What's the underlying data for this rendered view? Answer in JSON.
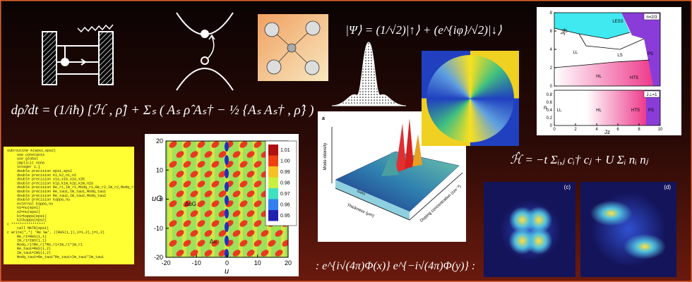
{
  "equations": {
    "density_matrix": "dρ̂/dt = (1/iħ) [ℋ , ρ̂] + Σₛ ( Aₛ ρ̂ Aₛ† − ½ {Aₛ Aₛ† , ρ̂} )",
    "spin_state": "|Ψ⟩ = (1/√2)|↑⟩ + (e^{iφ}/√2)|↓⟩",
    "hamiltonian": "ℋ̂ = −t Σᵢ,ⱼ cᵢ† cⱼ + U Σᵢ nᵢ nⱼ",
    "vertex": ": e^{i√(4π)Φ(x)} e^{−i√(4π)Φ(y)} :"
  },
  "code": [
    "subroutine A(eps1,eps2)",
    "use constants",
    "use global",
    "implicit none",
    "integer i,j",
    "double precision eps1,eps2",
    "double precision k1,k2,n1,n2",
    "double precision x1a,x1b,x2a,x2b",
    "double precision k1p,k1m,k2p,k2m,n2a",
    "double precision Re_r1,Im_r1,Modq_r1,Re_r2,Im_r2,Modq_r2",
    "double precision Re_tau1,Im_tau1,Modq_tau1",
    "double precision Re_tau2,Im_tau2,Modq_tau2",
    "double precision kappa,nu",
    "external kappa,nu",
    "n1=nu(eps1)",
    "n2=nu(eps2)",
    "k1=kappa(eps1)",
    "k2=kappa(eps2)",
    "c ****************",
    "call MATR(eps1)",
    "c write(*,*) 'Re Sw', ((ReS(i,j),i=1,2),j=1,2)",
    "Re_r1=ReS(1,1)",
    "Im_r1=ImS(1,1)",
    "Modq_r1=Re_r1*Re_r1+Im_r1*Im_r1",
    "Re_tau1=ReS(1,2)",
    "Im_tau1=ImS(1,2)",
    "Modq_tau1=Re_tau1*Re_tau1+Im_tau1*Im_tau1"
  ],
  "contour_plot": {
    "xticks": [
      -20,
      -10,
      0,
      10,
      20
    ],
    "yticks": [
      20,
      10,
      0,
      -10,
      -20
    ],
    "xlim": [
      -20,
      20
    ],
    "ylim": [
      -20,
      20
    ],
    "colorbar_ticks": [
      "1.01",
      "1.00",
      "0.99",
      "0.98",
      "0.97",
      "0.96",
      "0.95"
    ],
    "xlabel": "u",
    "ylabel": "uG",
    "annotations": [
      "ΔuG",
      "Δu"
    ]
  },
  "phase_diagram": {
    "regions": [
      "LESS",
      "LS",
      "LL",
      "LS",
      "HL",
      "HTS",
      "PS",
      "LL",
      "HL",
      "HTS",
      "PS"
    ],
    "insets": [
      "n=2/3",
      "J⊥=1"
    ],
    "xlabel": "Jz",
    "ylabel_top": "J⊥",
    "ylabel_bottom": "n",
    "xticks": [
      0,
      2,
      4,
      6,
      8,
      10
    ],
    "yticks_top": [
      0,
      2,
      4,
      6,
      8
    ],
    "yticks_bottom": [
      "0",
      "0.2",
      "0.4",
      "0.6",
      "0.8"
    ]
  },
  "mode_plot": {
    "panel": "a",
    "zlabel": "Mode intensity",
    "xlabel": "Thickness (μm)",
    "ylabel": "Doping concentration (cm⁻³)",
    "material": "GaAs"
  },
  "panels": [
    "(c)",
    "(d)"
  ]
}
